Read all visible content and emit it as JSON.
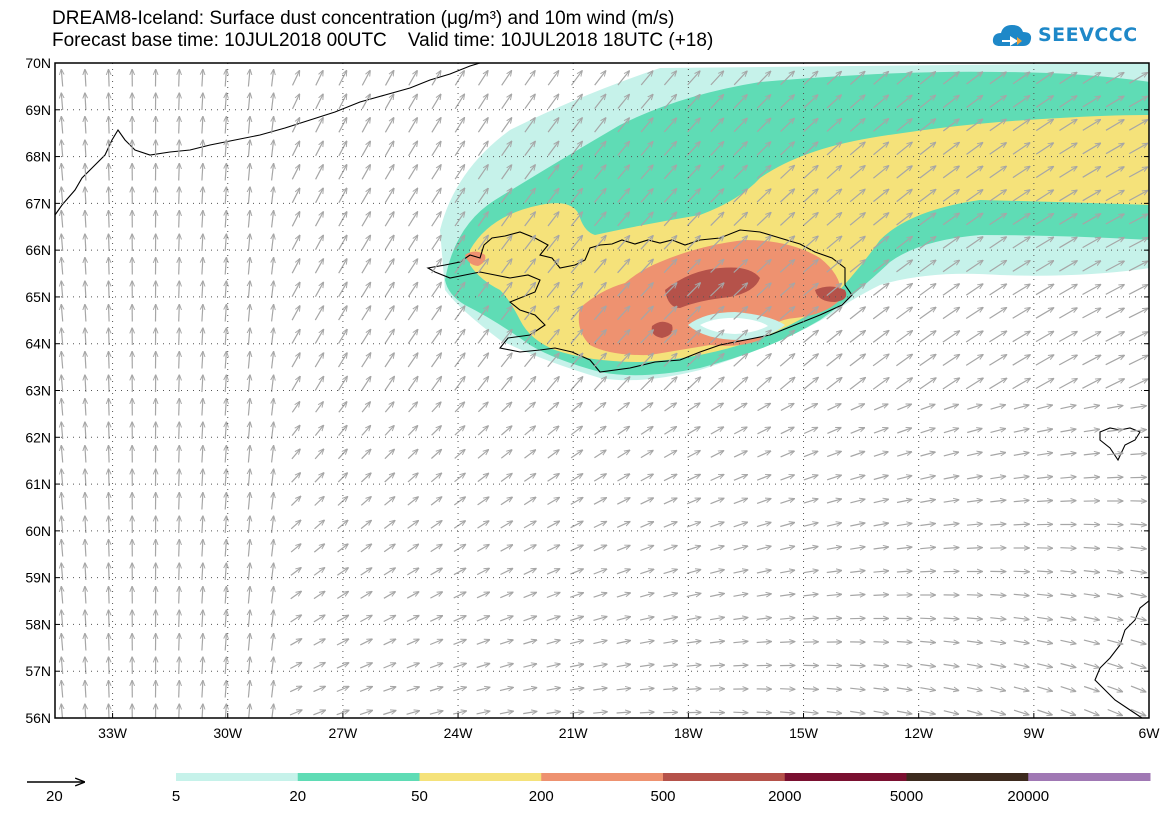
{
  "title": {
    "line1": "DREAM8-Iceland: Surface dust concentration (μg/m³) and 10m wind (m/s)",
    "line2": "Forecast base time: 10JUL2018 00UTC    Valid time: 10JUL2018 18UTC (+18)"
  },
  "logo": {
    "text": "SEEVCCC",
    "icon": "cloud-logo-icon"
  },
  "map": {
    "lon_range": [
      -34.5,
      -6
    ],
    "lat_range": [
      56,
      70
    ],
    "lat_ticks": [
      {
        "value": 70,
        "label": "70N"
      },
      {
        "value": 69,
        "label": "69N"
      },
      {
        "value": 68,
        "label": "68N"
      },
      {
        "value": 67,
        "label": "67N"
      },
      {
        "value": 66,
        "label": "66N"
      },
      {
        "value": 65,
        "label": "65N"
      },
      {
        "value": 64,
        "label": "64N"
      },
      {
        "value": 63,
        "label": "63N"
      },
      {
        "value": 62,
        "label": "62N"
      },
      {
        "value": 61,
        "label": "61N"
      },
      {
        "value": 60,
        "label": "60N"
      },
      {
        "value": 59,
        "label": "59N"
      },
      {
        "value": 58,
        "label": "58N"
      },
      {
        "value": 57,
        "label": "57N"
      },
      {
        "value": 56,
        "label": "56N"
      }
    ],
    "lon_ticks": [
      {
        "value": -33,
        "label": "33W"
      },
      {
        "value": -30,
        "label": "30W"
      },
      {
        "value": -27,
        "label": "27W"
      },
      {
        "value": -24,
        "label": "24W"
      },
      {
        "value": -21,
        "label": "21W"
      },
      {
        "value": -18,
        "label": "18W"
      },
      {
        "value": -15,
        "label": "15W"
      },
      {
        "value": -12,
        "label": "12W"
      },
      {
        "value": -9,
        "label": "9W"
      },
      {
        "value": -6,
        "label": "6W"
      }
    ],
    "grid": "dotted"
  },
  "legend": {
    "wind_reference_label": "20",
    "bins": [
      {
        "from": "5",
        "color": "#c6f2ea"
      },
      {
        "from": "20",
        "color": "#5fdcb5"
      },
      {
        "from": "50",
        "color": "#f5e27a"
      },
      {
        "from": "200",
        "color": "#ee9270"
      },
      {
        "from": "500",
        "color": "#b5524a"
      },
      {
        "from": "2000",
        "color": "#7a1030"
      },
      {
        "from": "5000",
        "color": "#3d2a1e"
      },
      {
        "from": "20000",
        "color": "#a078b4"
      }
    ]
  },
  "colors": {
    "wind_arrow": "#a6a6a6",
    "coast": "#000000"
  }
}
